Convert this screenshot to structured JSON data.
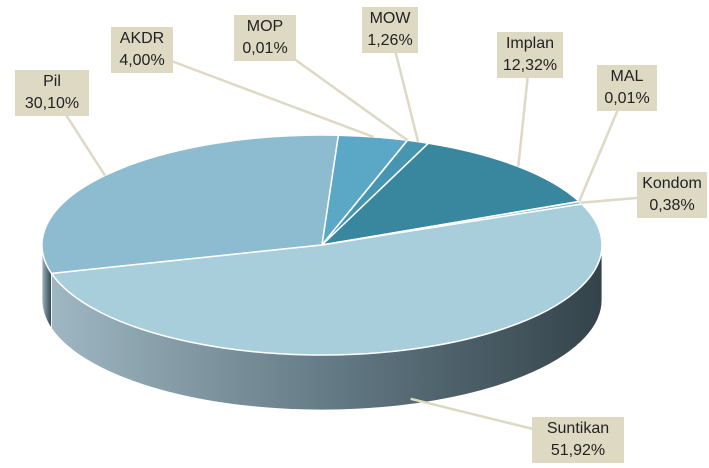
{
  "chart_data": {
    "type": "pie",
    "categories": [
      "Pil",
      "AKDR",
      "MOP",
      "MOW",
      "Implan",
      "MAL",
      "Kondom",
      "Suntikan"
    ],
    "values": [
      30.1,
      4.0,
      0.01,
      1.26,
      12.32,
      0.01,
      0.38,
      51.92
    ],
    "value_labels": [
      "30,10%",
      "4,00%",
      "0,01%",
      "1,26%",
      "12,32%",
      "0,01%",
      "0,38%",
      "51,92%"
    ],
    "colors": [
      "#8dbcd1",
      "#5ba8c6",
      "#4f9fbd",
      "#4796b1",
      "#39879e",
      "#3b8ea6",
      "#7fb3c6",
      "#a7ceda"
    ]
  }
}
